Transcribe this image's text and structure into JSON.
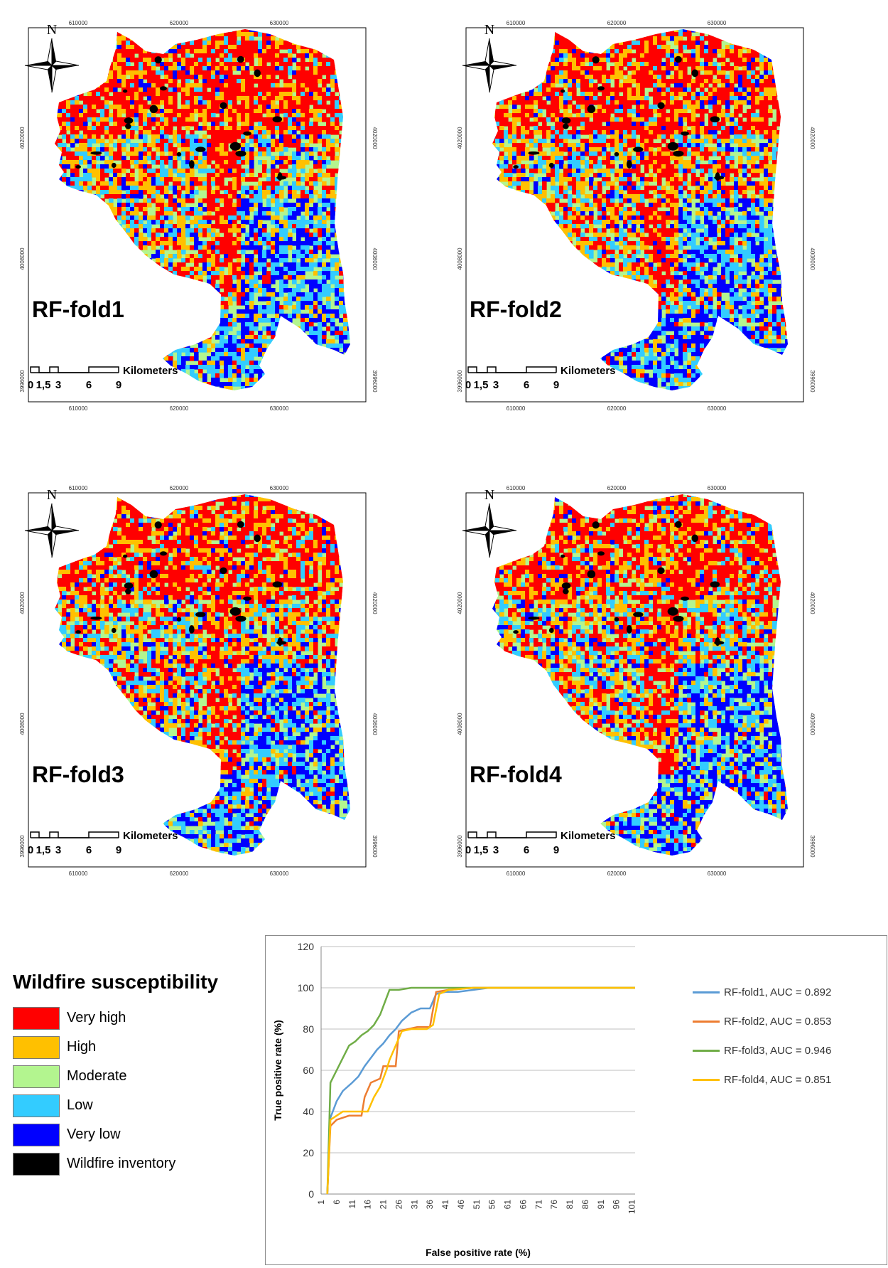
{
  "maps": [
    {
      "label": "RF-fold1"
    },
    {
      "label": "RF-fold2"
    },
    {
      "label": "RF-fold3"
    },
    {
      "label": "RF-fold4"
    }
  ],
  "map_common": {
    "north": "N",
    "easting_ticks": [
      "610000",
      "620000",
      "630000"
    ],
    "northing_ticks": [
      "4020000",
      "4008000",
      "3996000"
    ],
    "scale_labels": [
      "0",
      "1,5",
      "3",
      "6",
      "9"
    ],
    "scale_unit": "Kilometers"
  },
  "legend": {
    "title": "Wildfire susceptibility",
    "items": [
      {
        "label": "Very high",
        "color": "#ff0000"
      },
      {
        "label": "High",
        "color": "#ffc000"
      },
      {
        "label": "Moderate",
        "color": "#b3f58f"
      },
      {
        "label": "Low",
        "color": "#33ccff"
      },
      {
        "label": "Very low",
        "color": "#0000ff"
      },
      {
        "label": "Wildfire inventory",
        "color": "#000000"
      }
    ]
  },
  "chart_data": {
    "type": "line",
    "xlabel": "False positive rate (%)",
    "ylabel": "True positive rate (%)",
    "ylim": [
      0,
      120
    ],
    "yticks": [
      0,
      20,
      40,
      60,
      80,
      100,
      120
    ],
    "xlim": [
      1,
      102
    ],
    "xticks": [
      1,
      6,
      11,
      16,
      21,
      26,
      31,
      36,
      41,
      46,
      51,
      56,
      61,
      66,
      71,
      76,
      81,
      86,
      91,
      96,
      101
    ],
    "grid": "horizontal",
    "legend_position": "right",
    "series": [
      {
        "name": "RF-fold1, AUC = 0.892",
        "color": "#5b9bd5",
        "x": [
          3,
          4,
          6,
          8,
          11,
          13,
          15,
          17,
          19,
          21,
          23,
          25,
          27,
          30,
          33,
          36,
          38,
          41,
          45,
          50,
          55,
          102
        ],
        "y": [
          0,
          37,
          45,
          50,
          54,
          57,
          62,
          66,
          70,
          73,
          77,
          80,
          84,
          88,
          90,
          90,
          97,
          98,
          98,
          99,
          100,
          100
        ]
      },
      {
        "name": "RF-fold2, AUC = 0.853",
        "color": "#ed7d31",
        "x": [
          3,
          4,
          6,
          8,
          10,
          14,
          15,
          17,
          20,
          21,
          22,
          25,
          26,
          29,
          32,
          36,
          38,
          42,
          50,
          102
        ],
        "y": [
          0,
          33,
          36,
          37,
          38,
          38,
          47,
          54,
          56,
          62,
          62,
          62,
          79,
          80,
          81,
          81,
          98,
          99,
          100,
          100
        ]
      },
      {
        "name": "RF-fold3, AUC = 0.946",
        "color": "#70ad47",
        "x": [
          3,
          4,
          6,
          8,
          10,
          12,
          14,
          16,
          18,
          20,
          22,
          23,
          26,
          30,
          35,
          40,
          102
        ],
        "y": [
          0,
          54,
          60,
          66,
          72,
          74,
          77,
          79,
          82,
          87,
          95,
          99,
          99,
          100,
          100,
          100,
          100
        ]
      },
      {
        "name": "RF-fold4, AUC = 0.851",
        "color": "#ffc000",
        "x": [
          3,
          4,
          6,
          8,
          12,
          16,
          18,
          20,
          22,
          23,
          25,
          27,
          30,
          35,
          37,
          39,
          42,
          50,
          102
        ],
        "y": [
          0,
          36,
          38,
          40,
          40,
          40,
          47,
          52,
          60,
          65,
          72,
          79,
          80,
          80,
          82,
          97,
          99,
          100,
          100
        ]
      }
    ]
  }
}
